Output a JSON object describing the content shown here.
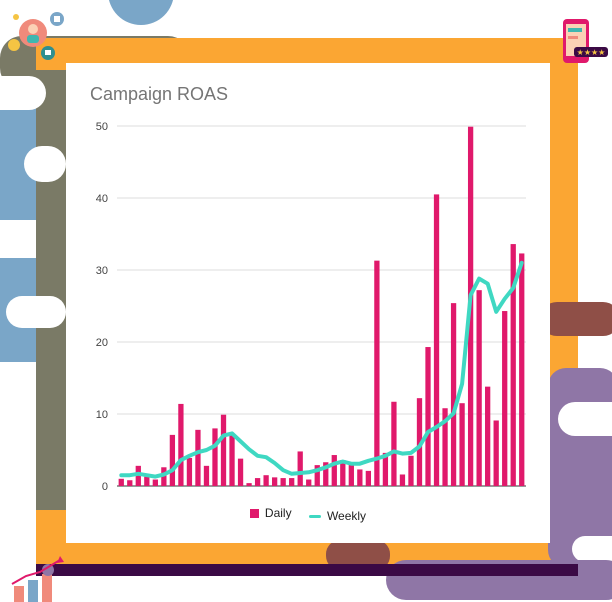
{
  "colors": {
    "daily": "#e0196b",
    "weekly": "#3fd8c2",
    "orange_frame": "#fba633",
    "purple_bar": "#3b0a45",
    "slate": "#7a7a66",
    "blue_deco": "#7aa6c8",
    "mauve_deco": "#8f76a6",
    "brown_deco": "#8f4f47"
  },
  "icons": {
    "top_left": "people-network-icon",
    "top_right": "mobile-review-icon",
    "bottom_left": "growth-chart-icon"
  },
  "chart_data": {
    "type": "bar",
    "title": "Campaign ROAS",
    "xlabel": "",
    "ylabel": "",
    "ylim": [
      0,
      50
    ],
    "yticks": [
      0,
      10,
      20,
      30,
      40,
      50
    ],
    "grid": true,
    "legend_position": "bottom",
    "series": [
      {
        "name": "Daily",
        "type": "bar",
        "values": [
          1.0,
          0.8,
          2.8,
          1.3,
          0.9,
          2.6,
          7.1,
          11.4,
          3.9,
          7.8,
          2.8,
          8.0,
          9.9,
          7.3,
          3.8,
          0.4,
          1.1,
          1.5,
          1.2,
          1.1,
          1.1,
          4.8,
          0.9,
          2.9,
          3.3,
          4.3,
          3.6,
          3.2,
          2.3,
          2.1,
          31.3,
          4.6,
          11.7,
          1.6,
          4.2,
          12.2,
          19.3,
          40.5,
          10.8,
          25.4,
          11.5,
          49.9,
          27.2,
          13.8,
          9.1,
          24.3,
          33.6,
          32.3
        ]
      },
      {
        "name": "Weekly",
        "type": "line",
        "values": [
          1.5,
          1.5,
          1.7,
          1.5,
          1.3,
          1.6,
          2.2,
          3.6,
          4.2,
          4.7,
          5.0,
          5.6,
          7.0,
          7.3,
          6.2,
          5.1,
          4.2,
          4.0,
          3.2,
          2.2,
          1.7,
          1.8,
          1.9,
          2.2,
          2.6,
          3.1,
          3.4,
          3.1,
          3.1,
          3.5,
          3.8,
          4.2,
          4.8,
          4.5,
          4.6,
          5.5,
          7.5,
          8.2,
          9.0,
          10.1,
          14.2,
          26.5,
          28.8,
          28.1,
          24.2,
          26.0,
          27.5,
          31.0
        ]
      }
    ]
  }
}
